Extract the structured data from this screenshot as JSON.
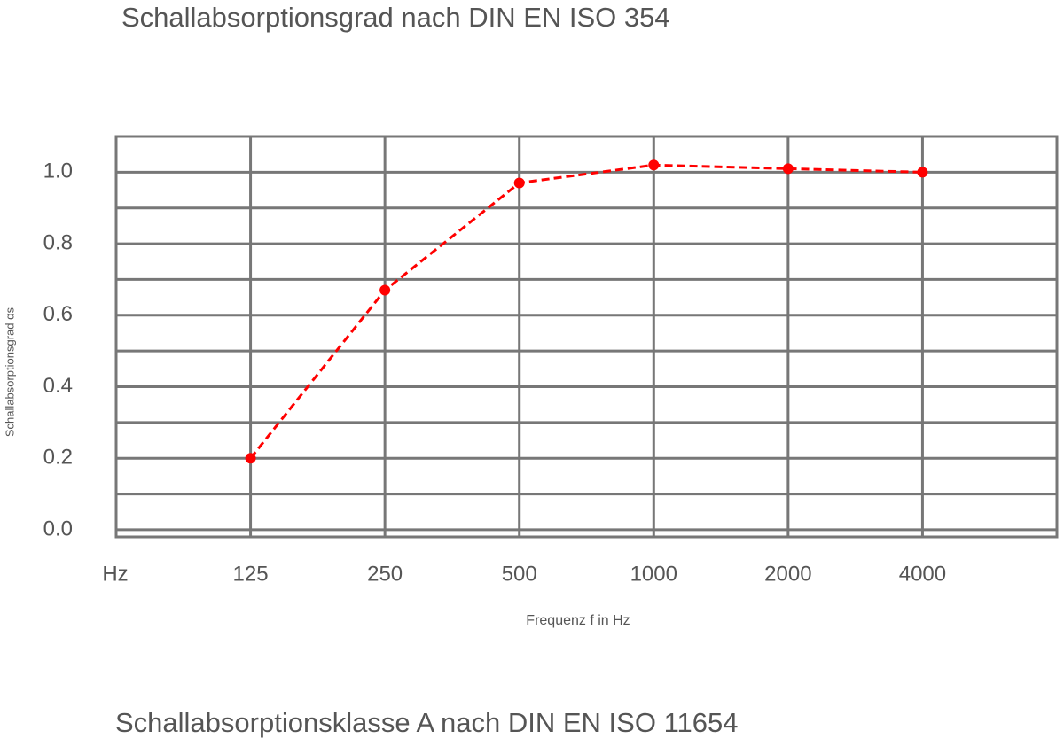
{
  "chart_data": {
    "type": "line",
    "title": "Schallabsorptionsgrad nach DIN EN ISO 354",
    "subtitle": "Schallabsorptionsklasse A nach DIN EN ISO 11654",
    "y_label": "Schallabsorptionsgrad αs",
    "x_label": "Frequenz f in Hz",
    "x_unit": "Hz",
    "categories": [
      "125",
      "250",
      "500",
      "1000",
      "2000",
      "4000"
    ],
    "series": [
      {
        "name": "αs",
        "color": "#ff0000",
        "values": [
          0.2,
          0.67,
          0.97,
          1.02,
          1.01,
          1.0
        ]
      }
    ],
    "ylim": [
      -0.02,
      1.1
    ],
    "yticks": [
      {
        "value": 0,
        "label": "0.0"
      },
      0.2,
      0.4,
      0.6,
      0.8,
      {
        "value": 1,
        "label": "1.0"
      }
    ],
    "minor_yticks": [
      0.1,
      0.3,
      0.5,
      0.7,
      0.9
    ],
    "grid": true,
    "dashed": true
  }
}
